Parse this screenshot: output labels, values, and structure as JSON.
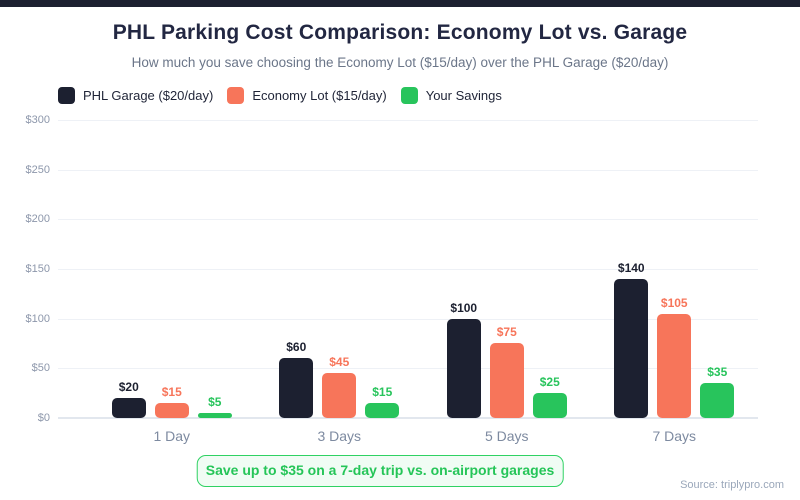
{
  "header": {
    "title": "PHL Parking Cost Comparison: Economy Lot vs. Garage",
    "subtitle": "How much you save choosing the Economy Lot ($15/day) over the PHL Garage ($20/day)"
  },
  "legend": [
    {
      "label": "PHL Garage ($20/day)",
      "color": "#1c2030"
    },
    {
      "label": "Economy Lot ($15/day)",
      "color": "#f7755a"
    },
    {
      "label": "Your Savings",
      "color": "#28c45c"
    }
  ],
  "chart_data": {
    "type": "bar",
    "title": "PHL Parking Cost Comparison: Economy Lot vs. Garage",
    "subtitle": "How much you save choosing the Economy Lot ($15/day) over the PHL Garage ($20/day)",
    "categories": [
      "1 Day",
      "3 Days",
      "5 Days",
      "7 Days"
    ],
    "series": [
      {
        "name": "PHL Garage ($20/day)",
        "color": "#1c2030",
        "label_color": "#1c2030",
        "values": [
          20,
          60,
          100,
          140
        ]
      },
      {
        "name": "Economy Lot ($15/day)",
        "color": "#f7755a",
        "label_color": "#f7755a",
        "values": [
          15,
          45,
          75,
          105
        ]
      },
      {
        "name": "Your Savings",
        "color": "#28c45c",
        "label_color": "#28c45c",
        "values": [
          5,
          15,
          25,
          35
        ]
      }
    ],
    "ylim": [
      0,
      300
    ],
    "yticks": [
      0,
      50,
      100,
      150,
      200,
      250,
      300
    ],
    "ytick_prefix": "$",
    "value_label_prefix": "$",
    "grid": "horizontal",
    "legend_position": "top-left",
    "value_labels": true
  },
  "annotation": {
    "text": "Save up to $35 on a 7-day trip vs. on-airport garages",
    "color": "#25c558"
  },
  "footer": {
    "source": "Source: triplypro.com"
  },
  "theme": {
    "accent_bar_color": "#1c2030",
    "grid_color": "#eef1f6",
    "axis_color": "#e2e7ee",
    "tick_label_color": "#8d97ab",
    "category_label_color": "#7d8aa0"
  }
}
